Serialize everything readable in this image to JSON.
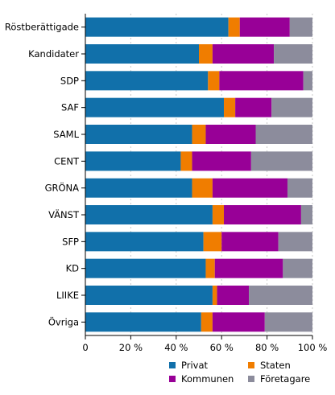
{
  "chart_data": {
    "type": "bar",
    "orientation": "horizontal",
    "stacked": true,
    "title": "",
    "xlabel": "",
    "ylabel": "",
    "xlim": [
      0,
      100
    ],
    "xticks": [
      "0",
      "20 %",
      "40 %",
      "60 %",
      "80 %",
      "100 %"
    ],
    "grid": "vertical dashed",
    "legend_position": "bottom",
    "categories": [
      "Röstberättigade",
      "Kandidater",
      "SDP",
      "SAF",
      "SAML",
      "CENT",
      "GRÖNA",
      "VÄNST",
      "SFP",
      "KD",
      "LIIKE",
      "Övriga"
    ],
    "series": [
      {
        "name": "Privat",
        "color": "#1170aa",
        "values": [
          63,
          50,
          54,
          61,
          47,
          42,
          47,
          56,
          52,
          53,
          56,
          51
        ]
      },
      {
        "name": "Staten",
        "color": "#f07d00",
        "values": [
          5,
          6,
          5,
          5,
          6,
          5,
          9,
          5,
          8,
          4,
          2,
          5
        ]
      },
      {
        "name": "Kommunen",
        "color": "#980097",
        "values": [
          22,
          27,
          37,
          16,
          22,
          26,
          33,
          34,
          25,
          30,
          14,
          23
        ]
      },
      {
        "name": "Företagare",
        "color": "#8c8c9c",
        "values": [
          10,
          17,
          4,
          18,
          25,
          27,
          11,
          5,
          15,
          13,
          28,
          21
        ]
      }
    ],
    "legend": {
      "rows": [
        [
          "Privat",
          "Staten"
        ],
        [
          "Kommunen",
          "Företagare"
        ]
      ]
    }
  }
}
